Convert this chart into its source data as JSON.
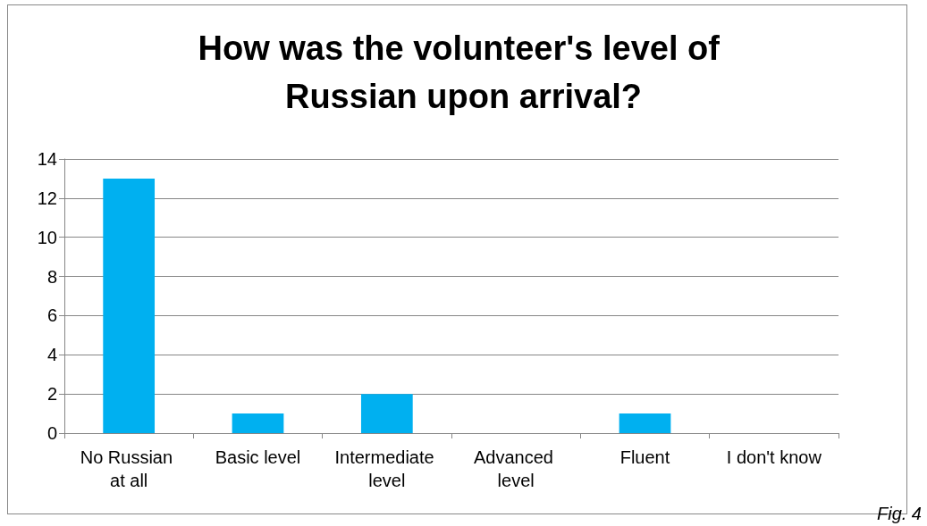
{
  "chart_data": {
    "type": "bar",
    "title": "How was the volunteer's level of Russian upon arrival?",
    "categories": [
      "No Russian at all",
      "Basic level",
      "Intermediate level",
      "Advanced level",
      "Fluent",
      "I don't know"
    ],
    "values": [
      13,
      1,
      2,
      0,
      1,
      0
    ],
    "color": "#00b0f0",
    "ylim": [
      0,
      14
    ],
    "yticks": [
      0,
      2,
      4,
      6,
      8,
      10,
      12,
      14
    ],
    "grid": "y",
    "annotations": [
      "Fig. 4"
    ]
  }
}
